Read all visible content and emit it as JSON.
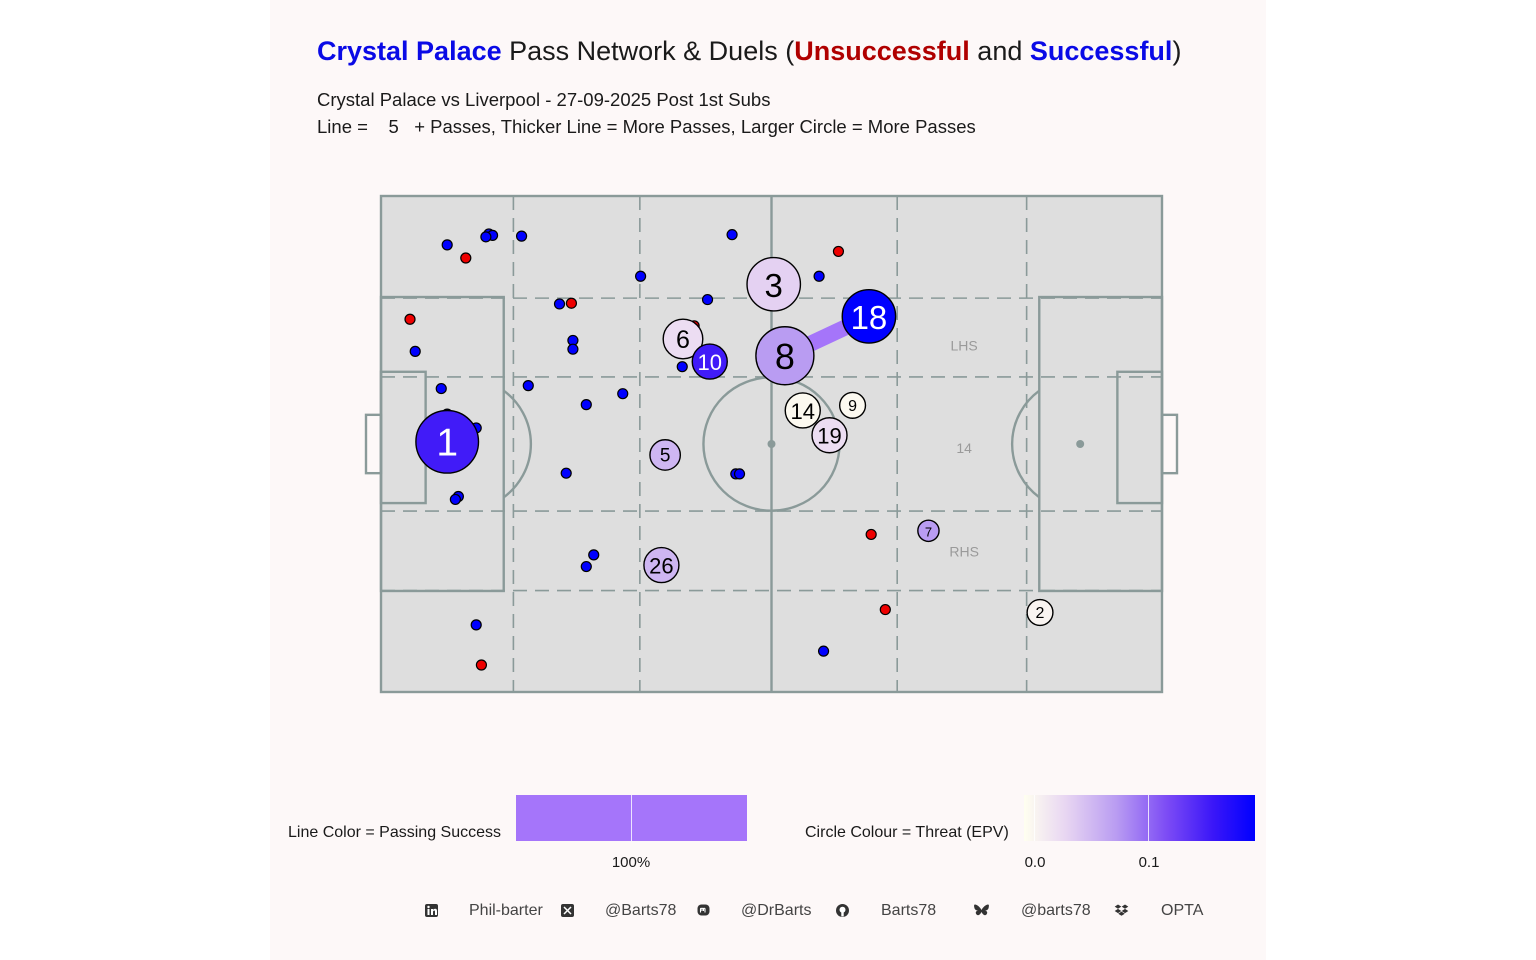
{
  "title": {
    "team": "Crystal Palace",
    "middle": " Pass Network & Duels (",
    "unsuccessful": "Unsuccessful",
    "and": " and ",
    "successful": "Successful",
    "end": ")"
  },
  "subtitle1": "Crystal Palace vs Liverpool - 27-09-2025 Post 1st Subs",
  "subtitle2": "Line =    5   + Passes, Thicker Line = More Passes, Larger Circle = More Passes",
  "pitch_labels": {
    "lhs": "LHS",
    "centre": "14",
    "rhs": "RHS"
  },
  "colors": {
    "successful": "#0000ff",
    "unsuccessful": "#ee0000",
    "pitch": "#dedede",
    "pitch_lines": "#8a9a99",
    "pass_line": "#a575fa"
  },
  "chart_data": {
    "type": "scatter",
    "pitch": {
      "length": 105,
      "width": 68
    },
    "players": [
      {
        "number": "1",
        "x": 8.9,
        "y": 34.3,
        "passes": 11,
        "epv": 0.16
      },
      {
        "number": "3",
        "x": 52.8,
        "y": 55.9,
        "passes": 9,
        "epv": 0.04
      },
      {
        "number": "18",
        "x": 65.6,
        "y": 51.5,
        "passes": 9,
        "epv": 0.2
      },
      {
        "number": "8",
        "x": 54.3,
        "y": 46.1,
        "passes": 10,
        "epv": 0.08
      },
      {
        "number": "6",
        "x": 40.6,
        "y": 48.4,
        "passes": 6,
        "epv": 0.03
      },
      {
        "number": "10",
        "x": 44.2,
        "y": 45.3,
        "passes": 5,
        "epv": 0.16
      },
      {
        "number": "14",
        "x": 56.7,
        "y": 38.6,
        "passes": 5,
        "epv": 0.005
      },
      {
        "number": "9",
        "x": 63.4,
        "y": 39.3,
        "passes": 3,
        "epv": 0.005
      },
      {
        "number": "19",
        "x": 60.3,
        "y": 35.2,
        "passes": 5,
        "epv": 0.03
      },
      {
        "number": "5",
        "x": 38.2,
        "y": 32.5,
        "passes": 4,
        "epv": 0.06
      },
      {
        "number": "7",
        "x": 73.6,
        "y": 22.1,
        "passes": 2,
        "epv": 0.08
      },
      {
        "number": "26",
        "x": 37.7,
        "y": 17.4,
        "passes": 5,
        "epv": 0.06
      },
      {
        "number": "2",
        "x": 88.6,
        "y": 10.9,
        "passes": 3,
        "epv": 0.01
      }
    ],
    "pass_links": [
      {
        "from": "8",
        "to": "18",
        "passes": 5,
        "success_pct": 100
      }
    ],
    "duels_successful": [
      [
        8.9,
        61.3
      ],
      [
        14.5,
        62.8
      ],
      [
        15.0,
        62.6
      ],
      [
        14.1,
        62.4
      ],
      [
        18.9,
        62.5
      ],
      [
        47.2,
        62.7
      ],
      [
        34.9,
        57.0
      ],
      [
        58.9,
        57.0
      ],
      [
        43.9,
        53.8
      ],
      [
        24.0,
        53.2
      ],
      [
        25.8,
        48.2
      ],
      [
        4.6,
        46.7
      ],
      [
        25.8,
        47.0
      ],
      [
        40.5,
        44.6
      ],
      [
        19.8,
        42.0
      ],
      [
        32.5,
        40.9
      ],
      [
        27.6,
        39.4
      ],
      [
        8.1,
        41.6
      ],
      [
        8.9,
        38.1
      ],
      [
        12.8,
        36.2
      ],
      [
        24.9,
        30.0
      ],
      [
        47.7,
        29.9
      ],
      [
        48.2,
        29.9
      ],
      [
        10.4,
        26.8
      ],
      [
        10.0,
        26.4
      ],
      [
        28.6,
        18.8
      ],
      [
        27.6,
        17.2
      ],
      [
        12.8,
        9.2
      ],
      [
        59.5,
        5.6
      ]
    ],
    "duels_unsuccessful": [
      [
        11.4,
        59.5
      ],
      [
        61.5,
        60.4
      ],
      [
        25.6,
        53.3
      ],
      [
        3.9,
        51.1
      ],
      [
        42.1,
        50.2
      ],
      [
        65.9,
        21.6
      ],
      [
        67.8,
        11.3
      ],
      [
        13.5,
        3.7
      ]
    ],
    "legend": {
      "line_label": "Line Color = Passing Success",
      "line_ticks": [
        "100%"
      ],
      "circle_label": "Circle Colour = Threat (EPV)",
      "circle_ticks": [
        "0.0",
        "0.1"
      ]
    }
  },
  "footer": [
    {
      "icon": "linkedin-icon",
      "text": "Phil-barter"
    },
    {
      "icon": "x-twitter-icon",
      "text": "@Barts78"
    },
    {
      "icon": "mastodon-icon",
      "text": "@DrBarts"
    },
    {
      "icon": "github-icon",
      "text": "Barts78"
    },
    {
      "icon": "bluesky-icon",
      "text": "@barts78"
    },
    {
      "icon": "dropbox-icon",
      "text": "OPTA"
    }
  ]
}
